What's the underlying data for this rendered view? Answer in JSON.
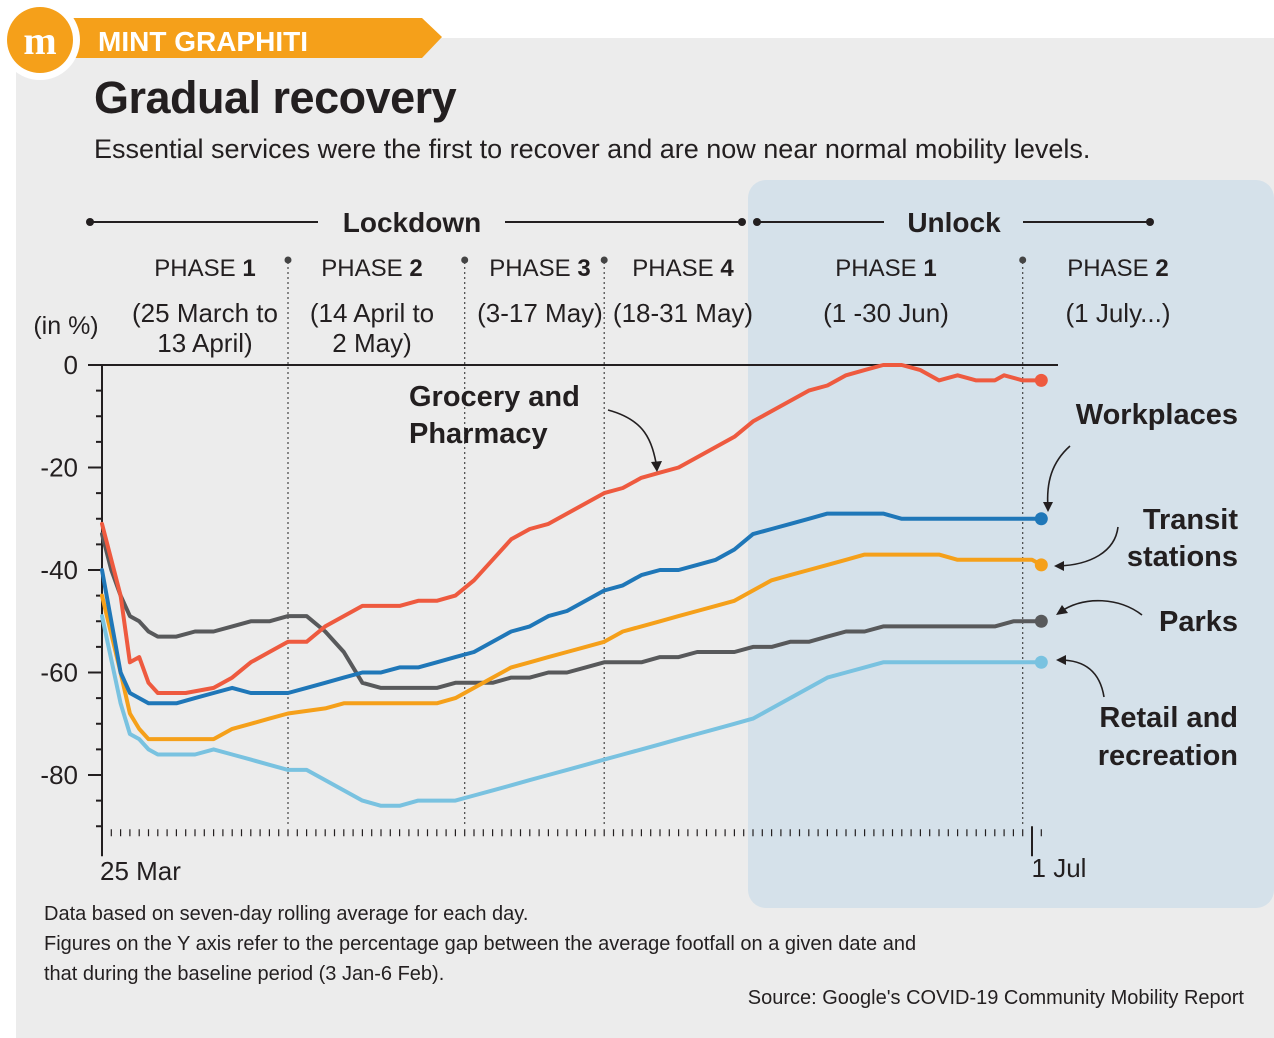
{
  "brand": {
    "logo_letter": "m",
    "name": "MINT GRAPHITI",
    "color": "#f5a01a"
  },
  "title": "Gradual recovery",
  "subtitle": "Essential services were the first to recover and are now near normal mobility levels.",
  "periods": {
    "lockdown": "Lockdown",
    "unlock": "Unlock",
    "phases": [
      {
        "word": "PHASE",
        "num": "1",
        "range": [
          "(25 March to",
          "13 April)"
        ]
      },
      {
        "word": "PHASE",
        "num": "2",
        "range": [
          "(14 April to",
          "2 May)"
        ]
      },
      {
        "word": "PHASE",
        "num": "3",
        "range": [
          "(3-17 May)"
        ]
      },
      {
        "word": "PHASE",
        "num": "4",
        "range": [
          "(18-31 May)"
        ]
      },
      {
        "word": "PHASE",
        "num": "1",
        "range": [
          "(1 -30 Jun)"
        ]
      },
      {
        "word": "PHASE",
        "num": "2",
        "range": [
          "(1 July...)"
        ]
      }
    ]
  },
  "chart_data": {
    "type": "line",
    "ylabel": "(in %)",
    "ylim": [
      -90,
      0
    ],
    "yticks": [
      0,
      -20,
      -40,
      -60,
      -80
    ],
    "x_start_label": "25 Mar",
    "x_end_label": "1 Jul",
    "unlock_shaded_from_day": 70,
    "phase_boundaries_day": [
      20,
      39,
      54,
      99
    ],
    "series": [
      {
        "name": "Grocery and Pharmacy",
        "label_lines": [
          "Grocery and",
          "Pharmacy"
        ],
        "color": "#ee5a3f",
        "points": [
          [
            0,
            -31
          ],
          [
            2,
            -45
          ],
          [
            3,
            -58
          ],
          [
            4,
            -57
          ],
          [
            5,
            -62
          ],
          [
            6,
            -64
          ],
          [
            9,
            -64
          ],
          [
            12,
            -63
          ],
          [
            14,
            -61
          ],
          [
            16,
            -58
          ],
          [
            18,
            -56
          ],
          [
            20,
            -54
          ],
          [
            22,
            -54
          ],
          [
            24,
            -51
          ],
          [
            26,
            -49
          ],
          [
            28,
            -47
          ],
          [
            30,
            -47
          ],
          [
            32,
            -47
          ],
          [
            34,
            -46
          ],
          [
            36,
            -46
          ],
          [
            38,
            -45
          ],
          [
            40,
            -42
          ],
          [
            42,
            -38
          ],
          [
            44,
            -34
          ],
          [
            46,
            -32
          ],
          [
            48,
            -31
          ],
          [
            50,
            -29
          ],
          [
            52,
            -27
          ],
          [
            54,
            -25
          ],
          [
            56,
            -24
          ],
          [
            58,
            -22
          ],
          [
            60,
            -21
          ],
          [
            62,
            -20
          ],
          [
            64,
            -18
          ],
          [
            66,
            -16
          ],
          [
            68,
            -14
          ],
          [
            70,
            -11
          ],
          [
            72,
            -9
          ],
          [
            74,
            -7
          ],
          [
            76,
            -5
          ],
          [
            78,
            -4
          ],
          [
            80,
            -2
          ],
          [
            82,
            -1
          ],
          [
            84,
            0
          ],
          [
            86,
            0
          ],
          [
            88,
            -1
          ],
          [
            90,
            -3
          ],
          [
            92,
            -2
          ],
          [
            94,
            -3
          ],
          [
            96,
            -3
          ],
          [
            97,
            -2
          ],
          [
            99,
            -3
          ],
          [
            101,
            -3
          ]
        ]
      },
      {
        "name": "Workplaces",
        "label_lines": [
          "Workplaces"
        ],
        "color": "#1f77b8",
        "points": [
          [
            0,
            -40
          ],
          [
            2,
            -60
          ],
          [
            3,
            -64
          ],
          [
            4,
            -65
          ],
          [
            5,
            -66
          ],
          [
            8,
            -66
          ],
          [
            10,
            -65
          ],
          [
            12,
            -64
          ],
          [
            14,
            -63
          ],
          [
            16,
            -64
          ],
          [
            20,
            -64
          ],
          [
            22,
            -63
          ],
          [
            24,
            -62
          ],
          [
            26,
            -61
          ],
          [
            28,
            -60
          ],
          [
            30,
            -60
          ],
          [
            32,
            -59
          ],
          [
            34,
            -59
          ],
          [
            36,
            -58
          ],
          [
            38,
            -57
          ],
          [
            40,
            -56
          ],
          [
            42,
            -54
          ],
          [
            44,
            -52
          ],
          [
            46,
            -51
          ],
          [
            48,
            -49
          ],
          [
            50,
            -48
          ],
          [
            52,
            -46
          ],
          [
            54,
            -44
          ],
          [
            56,
            -43
          ],
          [
            58,
            -41
          ],
          [
            60,
            -40
          ],
          [
            62,
            -40
          ],
          [
            64,
            -39
          ],
          [
            66,
            -38
          ],
          [
            68,
            -36
          ],
          [
            70,
            -33
          ],
          [
            72,
            -32
          ],
          [
            74,
            -31
          ],
          [
            76,
            -30
          ],
          [
            78,
            -29
          ],
          [
            80,
            -29
          ],
          [
            82,
            -29
          ],
          [
            84,
            -29
          ],
          [
            86,
            -30
          ],
          [
            88,
            -30
          ],
          [
            90,
            -30
          ],
          [
            92,
            -30
          ],
          [
            94,
            -30
          ],
          [
            96,
            -30
          ],
          [
            98,
            -30
          ],
          [
            100,
            -30
          ],
          [
            101,
            -30
          ]
        ]
      },
      {
        "name": "Transit stations",
        "label_lines": [
          "Transit",
          "stations"
        ],
        "color": "#f5a01a",
        "points": [
          [
            0,
            -45
          ],
          [
            2,
            -60
          ],
          [
            3,
            -68
          ],
          [
            4,
            -71
          ],
          [
            5,
            -73
          ],
          [
            8,
            -73
          ],
          [
            12,
            -73
          ],
          [
            14,
            -71
          ],
          [
            16,
            -70
          ],
          [
            18,
            -69
          ],
          [
            20,
            -68
          ],
          [
            24,
            -67
          ],
          [
            26,
            -66
          ],
          [
            28,
            -66
          ],
          [
            30,
            -66
          ],
          [
            32,
            -66
          ],
          [
            34,
            -66
          ],
          [
            36,
            -66
          ],
          [
            38,
            -65
          ],
          [
            40,
            -63
          ],
          [
            42,
            -61
          ],
          [
            44,
            -59
          ],
          [
            46,
            -58
          ],
          [
            48,
            -57
          ],
          [
            50,
            -56
          ],
          [
            52,
            -55
          ],
          [
            54,
            -54
          ],
          [
            56,
            -52
          ],
          [
            58,
            -51
          ],
          [
            60,
            -50
          ],
          [
            62,
            -49
          ],
          [
            64,
            -48
          ],
          [
            66,
            -47
          ],
          [
            68,
            -46
          ],
          [
            70,
            -44
          ],
          [
            72,
            -42
          ],
          [
            74,
            -41
          ],
          [
            76,
            -40
          ],
          [
            78,
            -39
          ],
          [
            80,
            -38
          ],
          [
            82,
            -37
          ],
          [
            84,
            -37
          ],
          [
            86,
            -37
          ],
          [
            88,
            -37
          ],
          [
            90,
            -37
          ],
          [
            92,
            -38
          ],
          [
            94,
            -38
          ],
          [
            96,
            -38
          ],
          [
            98,
            -38
          ],
          [
            100,
            -38
          ],
          [
            101,
            -39
          ]
        ]
      },
      {
        "name": "Parks",
        "label_lines": [
          "Parks"
        ],
        "color": "#58595b",
        "points": [
          [
            0,
            -33
          ],
          [
            1,
            -40
          ],
          [
            2,
            -45
          ],
          [
            3,
            -49
          ],
          [
            4,
            -50
          ],
          [
            5,
            -52
          ],
          [
            6,
            -53
          ],
          [
            8,
            -53
          ],
          [
            10,
            -52
          ],
          [
            12,
            -52
          ],
          [
            14,
            -51
          ],
          [
            16,
            -50
          ],
          [
            18,
            -50
          ],
          [
            20,
            -49
          ],
          [
            22,
            -49
          ],
          [
            24,
            -52
          ],
          [
            26,
            -56
          ],
          [
            28,
            -62
          ],
          [
            30,
            -63
          ],
          [
            32,
            -63
          ],
          [
            34,
            -63
          ],
          [
            36,
            -63
          ],
          [
            38,
            -62
          ],
          [
            40,
            -62
          ],
          [
            42,
            -62
          ],
          [
            44,
            -61
          ],
          [
            46,
            -61
          ],
          [
            48,
            -60
          ],
          [
            50,
            -60
          ],
          [
            52,
            -59
          ],
          [
            54,
            -58
          ],
          [
            56,
            -58
          ],
          [
            58,
            -58
          ],
          [
            60,
            -57
          ],
          [
            62,
            -57
          ],
          [
            64,
            -56
          ],
          [
            66,
            -56
          ],
          [
            68,
            -56
          ],
          [
            70,
            -55
          ],
          [
            72,
            -55
          ],
          [
            74,
            -54
          ],
          [
            76,
            -54
          ],
          [
            78,
            -53
          ],
          [
            80,
            -52
          ],
          [
            82,
            -52
          ],
          [
            84,
            -51
          ],
          [
            86,
            -51
          ],
          [
            88,
            -51
          ],
          [
            90,
            -51
          ],
          [
            92,
            -51
          ],
          [
            94,
            -51
          ],
          [
            96,
            -51
          ],
          [
            98,
            -50
          ],
          [
            100,
            -50
          ],
          [
            101,
            -50
          ]
        ]
      },
      {
        "name": "Retail and recreation",
        "label_lines": [
          "Retail and",
          "recreation"
        ],
        "color": "#79c2e0",
        "points": [
          [
            0,
            -49
          ],
          [
            2,
            -66
          ],
          [
            3,
            -72
          ],
          [
            4,
            -73
          ],
          [
            5,
            -75
          ],
          [
            6,
            -76
          ],
          [
            8,
            -76
          ],
          [
            10,
            -76
          ],
          [
            12,
            -75
          ],
          [
            14,
            -76
          ],
          [
            16,
            -77
          ],
          [
            18,
            -78
          ],
          [
            20,
            -79
          ],
          [
            22,
            -79
          ],
          [
            24,
            -81
          ],
          [
            26,
            -83
          ],
          [
            28,
            -85
          ],
          [
            30,
            -86
          ],
          [
            32,
            -86
          ],
          [
            34,
            -85
          ],
          [
            36,
            -85
          ],
          [
            38,
            -85
          ],
          [
            40,
            -84
          ],
          [
            42,
            -83
          ],
          [
            44,
            -82
          ],
          [
            46,
            -81
          ],
          [
            48,
            -80
          ],
          [
            50,
            -79
          ],
          [
            52,
            -78
          ],
          [
            54,
            -77
          ],
          [
            56,
            -76
          ],
          [
            58,
            -75
          ],
          [
            60,
            -74
          ],
          [
            62,
            -73
          ],
          [
            64,
            -72
          ],
          [
            66,
            -71
          ],
          [
            68,
            -70
          ],
          [
            70,
            -69
          ],
          [
            72,
            -67
          ],
          [
            74,
            -65
          ],
          [
            76,
            -63
          ],
          [
            78,
            -61
          ],
          [
            80,
            -60
          ],
          [
            82,
            -59
          ],
          [
            84,
            -58
          ],
          [
            86,
            -58
          ],
          [
            88,
            -58
          ],
          [
            90,
            -58
          ],
          [
            92,
            -58
          ],
          [
            94,
            -58
          ],
          [
            96,
            -58
          ],
          [
            98,
            -58
          ],
          [
            100,
            -58
          ],
          [
            101,
            -58
          ]
        ]
      }
    ]
  },
  "notes": [
    "Data based on seven-day rolling average for each day.",
    "Figures on the Y axis refer to the percentage gap between the average footfall on a given date and",
    "that during the baseline period (3 Jan-6 Feb)."
  ],
  "source": "Source: Google's COVID-19 Community Mobility Report"
}
